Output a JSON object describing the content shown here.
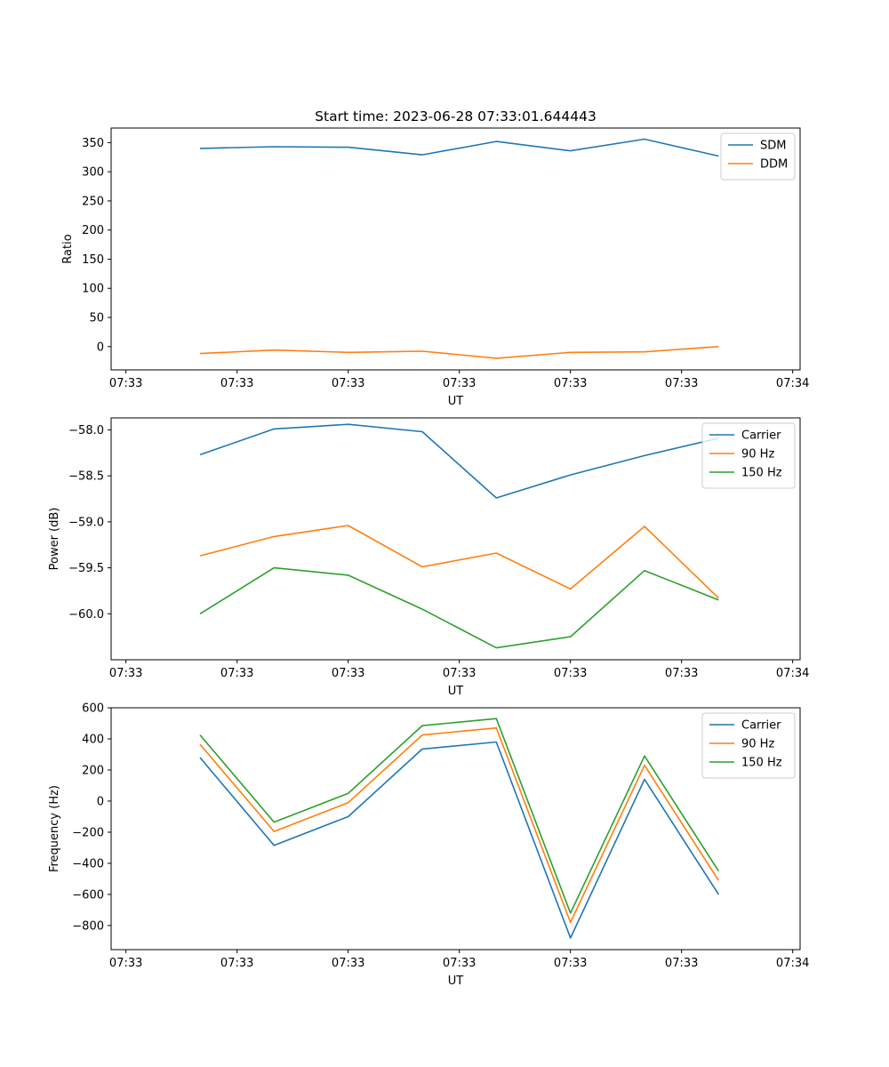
{
  "figure": {
    "title": "Start time: 2023-06-28 07:33:01.644443"
  },
  "chart_data": [
    {
      "type": "line",
      "xlabel": "UT",
      "ylabel": "Ratio",
      "x_tick_labels": [
        "07:33",
        "07:33",
        "07:33",
        "07:33",
        "07:33",
        "07:33",
        "07:34"
      ],
      "y_ticks": [
        0,
        50,
        100,
        150,
        200,
        250,
        300,
        350
      ],
      "ylim": [
        -40,
        375
      ],
      "x": [
        1,
        2,
        3,
        4,
        5,
        6,
        7,
        8
      ],
      "xlim": [
        -0.2,
        9.1
      ],
      "legend_position": "top-right",
      "series": [
        {
          "name": "SDM",
          "color": "#1f77b4",
          "values": [
            340,
            343,
            342,
            329,
            352,
            336,
            356,
            327
          ]
        },
        {
          "name": "DDM",
          "color": "#ff7f0e",
          "values": [
            -12,
            -6,
            -10,
            -8,
            -20,
            -10,
            -9,
            0
          ]
        }
      ]
    },
    {
      "type": "line",
      "xlabel": "UT",
      "ylabel": "Power (dB)",
      "x_tick_labels": [
        "07:33",
        "07:33",
        "07:33",
        "07:33",
        "07:33",
        "07:33",
        "07:34"
      ],
      "y_ticks": [
        -60.0,
        -59.5,
        -59.0,
        -58.5,
        -58.0
      ],
      "y_tick_labels": [
        "−60.0",
        "−59.5",
        "−59.0",
        "−58.5",
        "−58.0"
      ],
      "ylim": [
        -60.5,
        -57.87
      ],
      "x": [
        1,
        2,
        3,
        4,
        5,
        6,
        7,
        8
      ],
      "xlim": [
        -0.2,
        9.1
      ],
      "legend_position": "top-right",
      "series": [
        {
          "name": "Carrier",
          "color": "#1f77b4",
          "values": [
            -58.27,
            -57.99,
            -57.94,
            -58.02,
            -58.74,
            -58.49,
            -58.28,
            -58.09
          ]
        },
        {
          "name": "90 Hz",
          "color": "#ff7f0e",
          "values": [
            -59.37,
            -59.16,
            -59.04,
            -59.49,
            -59.34,
            -59.73,
            -59.05,
            -59.83
          ]
        },
        {
          "name": "150 Hz",
          "color": "#2ca02c",
          "values": [
            -60.0,
            -59.5,
            -59.58,
            -59.95,
            -60.37,
            -60.25,
            -59.53,
            -59.85
          ]
        }
      ]
    },
    {
      "type": "line",
      "xlabel": "UT",
      "ylabel": "Frequency (Hz)",
      "x_tick_labels": [
        "07:33",
        "07:33",
        "07:33",
        "07:33",
        "07:33",
        "07:33",
        "07:34"
      ],
      "y_ticks": [
        -800,
        -600,
        -400,
        -200,
        0,
        200,
        400,
        600
      ],
      "y_tick_labels": [
        "−800",
        "−600",
        "−400",
        "−200",
        "0",
        "200",
        "400",
        "600"
      ],
      "ylim": [
        -955,
        600
      ],
      "x": [
        1,
        2,
        3,
        4,
        5,
        6,
        7,
        8
      ],
      "xlim": [
        -0.2,
        9.1
      ],
      "legend_position": "top-right",
      "series": [
        {
          "name": "Carrier",
          "color": "#1f77b4",
          "values": [
            280,
            -285,
            -100,
            335,
            380,
            -880,
            140,
            -600
          ]
        },
        {
          "name": "90 Hz",
          "color": "#ff7f0e",
          "values": [
            365,
            -195,
            -10,
            425,
            470,
            -780,
            230,
            -510
          ]
        },
        {
          "name": "150 Hz",
          "color": "#2ca02c",
          "values": [
            425,
            -135,
            50,
            485,
            530,
            -720,
            290,
            -450
          ]
        }
      ]
    }
  ]
}
